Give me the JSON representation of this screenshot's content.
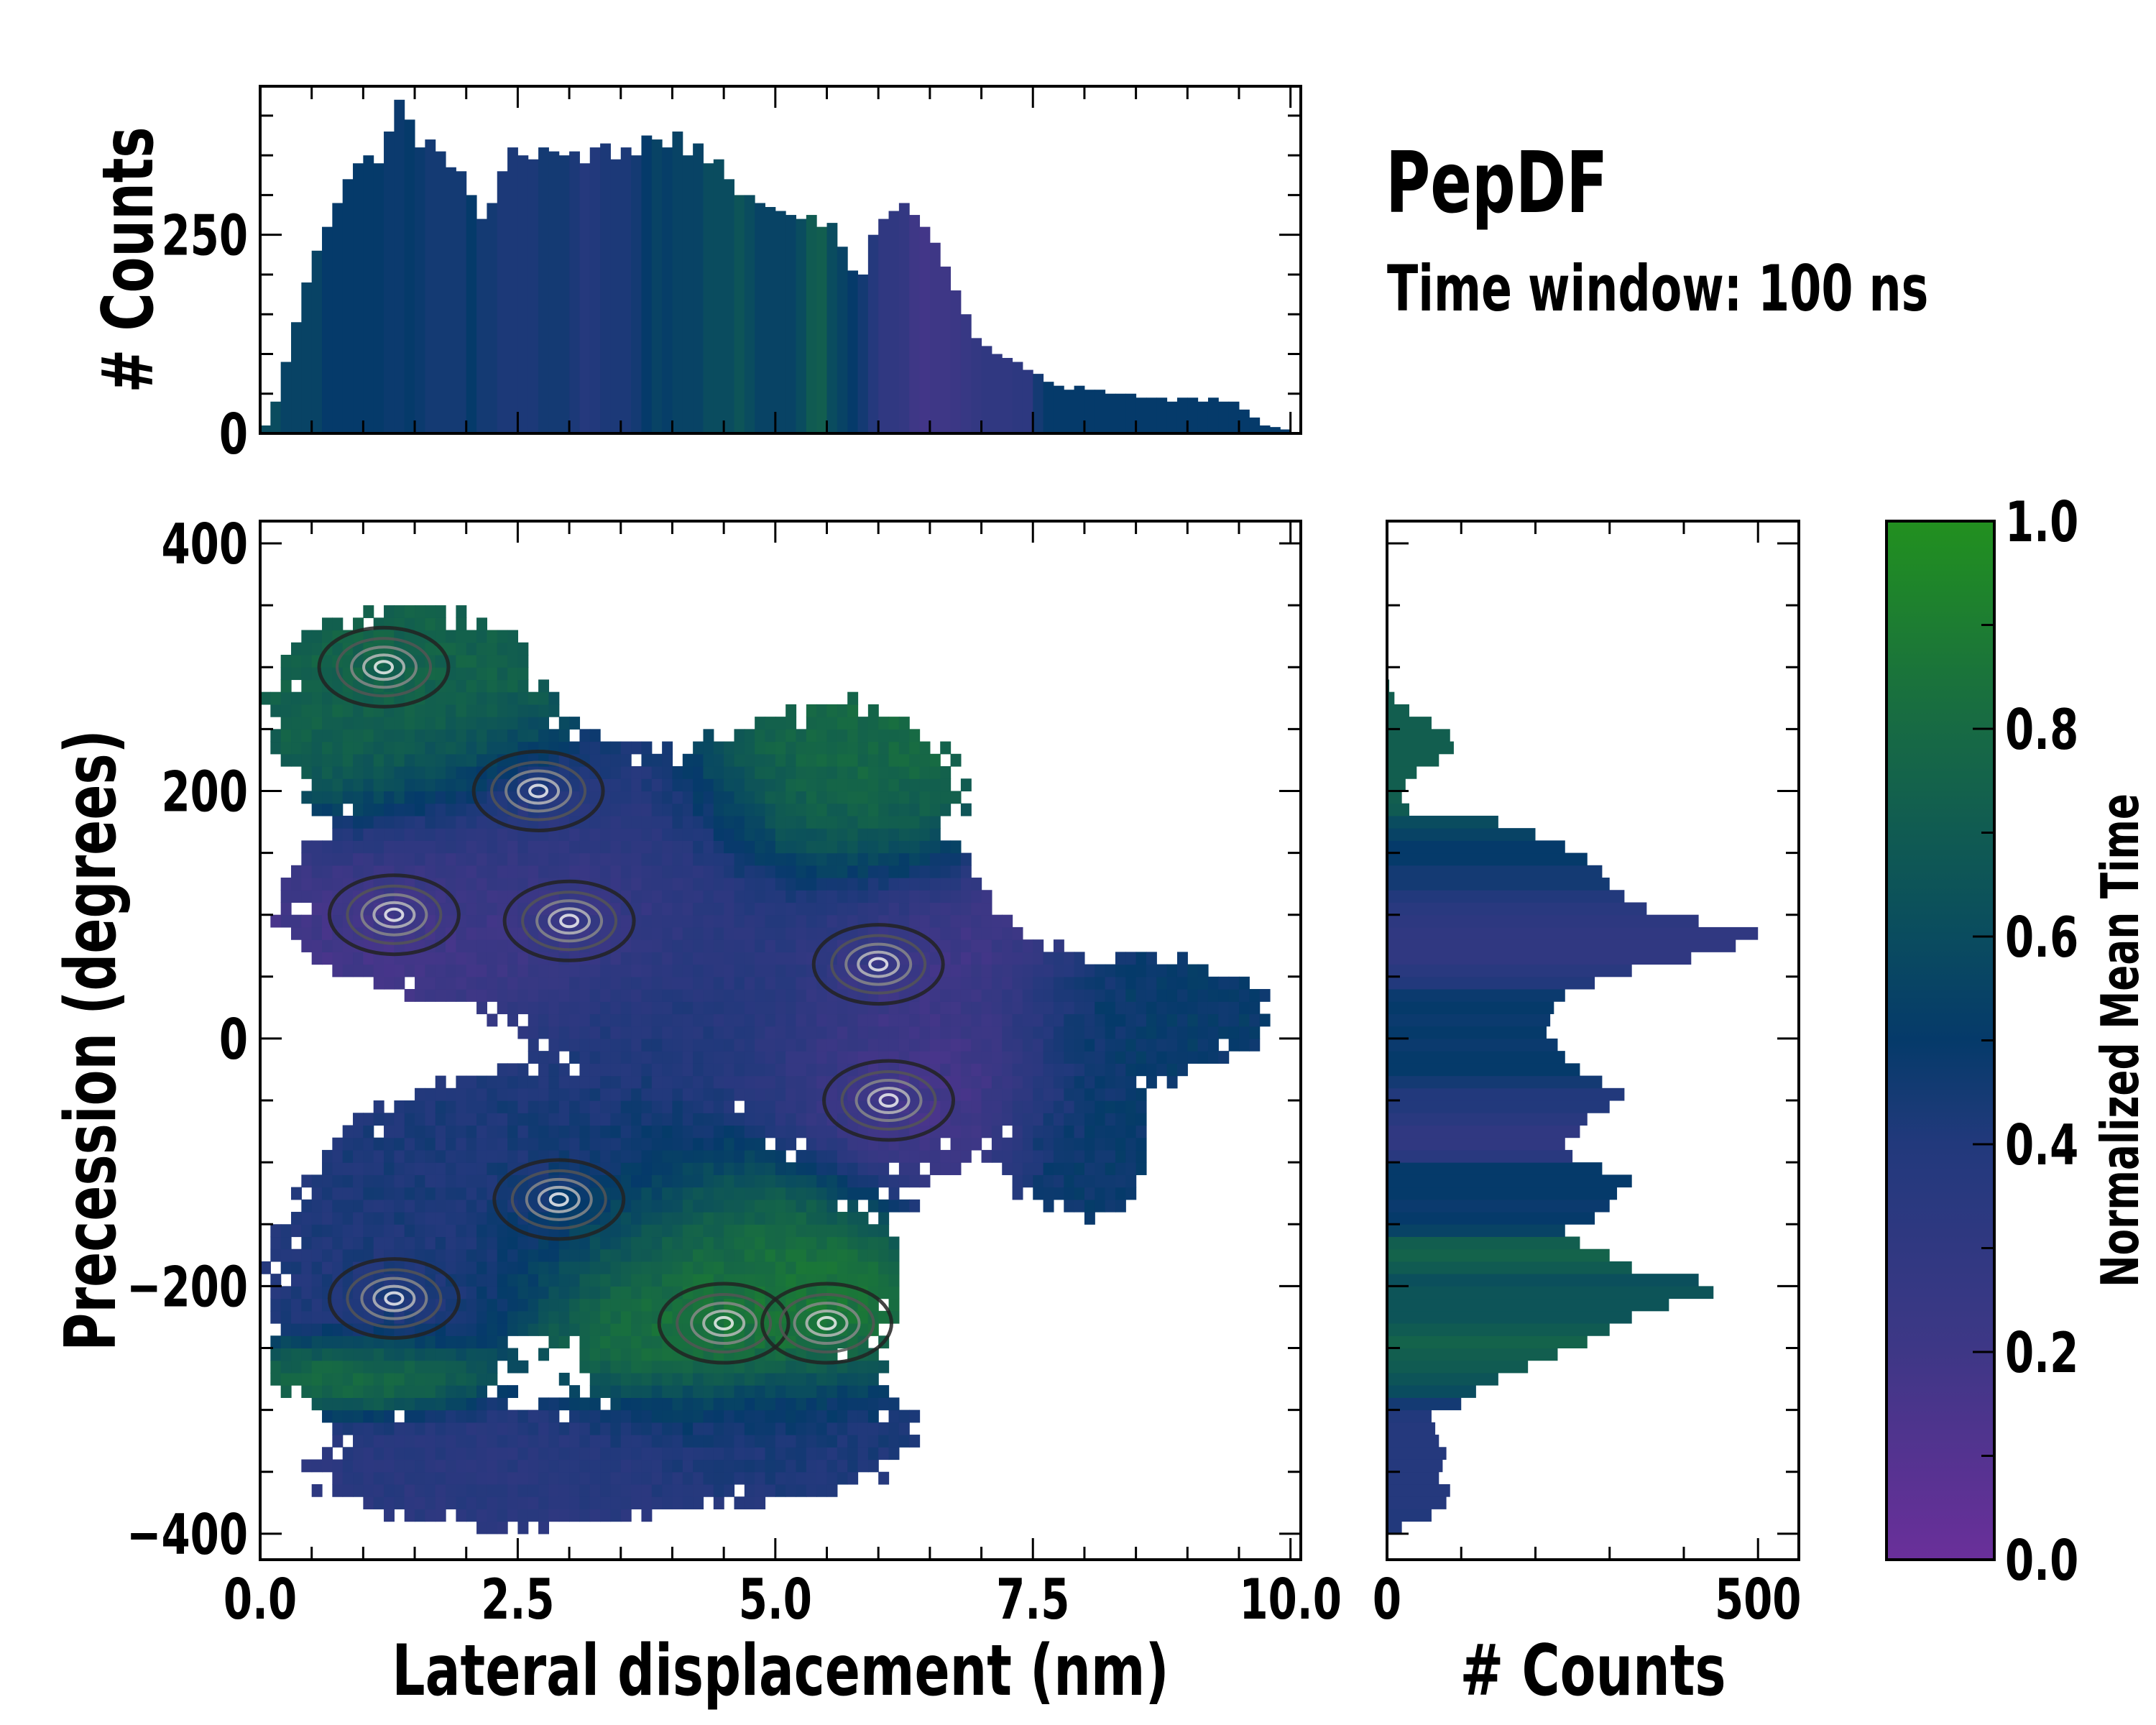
{
  "header": {
    "title": "PepDF",
    "subtitle": "Time window: 100 ns"
  },
  "colormap": {
    "stops": [
      [
        0.0,
        "#6a2f9a"
      ],
      [
        0.2,
        "#3e3786"
      ],
      [
        0.4,
        "#22397c"
      ],
      [
        0.5,
        "#053a6a"
      ],
      [
        0.6,
        "#0a4c5f"
      ],
      [
        0.8,
        "#176a44"
      ],
      [
        1.0,
        "#22901f"
      ]
    ]
  },
  "chart_data": [
    {
      "id": "top-histogram",
      "type": "bar",
      "ylabel": "# Counts",
      "xlim": [
        0,
        10.1
      ],
      "ylim": [
        0,
        437
      ],
      "yticks": [
        0,
        250
      ],
      "ytick_labels": [
        "0",
        "250"
      ],
      "bin_width": 0.1,
      "x_start": 0.0,
      "values": [
        10,
        40,
        90,
        140,
        190,
        230,
        260,
        290,
        320,
        340,
        350,
        340,
        380,
        420,
        395,
        360,
        370,
        355,
        335,
        330,
        300,
        270,
        290,
        330,
        360,
        350,
        345,
        360,
        355,
        350,
        355,
        340,
        360,
        365,
        345,
        360,
        350,
        375,
        370,
        360,
        380,
        350,
        365,
        340,
        345,
        320,
        300,
        300,
        290,
        285,
        280,
        275,
        270,
        275,
        260,
        265,
        235,
        205,
        200,
        250,
        270,
        280,
        290,
        275,
        260,
        240,
        210,
        180,
        150,
        120,
        110,
        100,
        95,
        90,
        80,
        75,
        65,
        60,
        55,
        60,
        55,
        55,
        50,
        50,
        50,
        45,
        45,
        45,
        40,
        45,
        45,
        40,
        45,
        40,
        40,
        30,
        20,
        10,
        8,
        5
      ],
      "mean_time": [
        0.6,
        0.6,
        0.55,
        0.55,
        0.55,
        0.55,
        0.5,
        0.5,
        0.5,
        0.5,
        0.5,
        0.5,
        0.48,
        0.48,
        0.5,
        0.48,
        0.45,
        0.45,
        0.45,
        0.45,
        0.5,
        0.45,
        0.45,
        0.42,
        0.42,
        0.42,
        0.42,
        0.45,
        0.45,
        0.45,
        0.42,
        0.38,
        0.4,
        0.42,
        0.42,
        0.42,
        0.45,
        0.5,
        0.55,
        0.52,
        0.55,
        0.55,
        0.55,
        0.6,
        0.6,
        0.6,
        0.65,
        0.6,
        0.55,
        0.55,
        0.55,
        0.55,
        0.6,
        0.7,
        0.72,
        0.6,
        0.55,
        0.5,
        0.45,
        0.38,
        0.3,
        0.3,
        0.28,
        0.2,
        0.18,
        0.2,
        0.2,
        0.22,
        0.25,
        0.28,
        0.3,
        0.3,
        0.3,
        0.32,
        0.32,
        0.45,
        0.5,
        0.5,
        0.5,
        0.5,
        0.5,
        0.5,
        0.5,
        0.5,
        0.5,
        0.5,
        0.5,
        0.5,
        0.5,
        0.5,
        0.5,
        0.5,
        0.5,
        0.5,
        0.5,
        0.5,
        0.5,
        0.5,
        0.5,
        0.5
      ]
    },
    {
      "id": "main-heatmap",
      "type": "heatmap",
      "xlabel": "Lateral displacement (nm)",
      "ylabel": "Precession (degrees)",
      "xlim": [
        0,
        10.1
      ],
      "ylim": [
        -421,
        418
      ],
      "xticks": [
        0,
        2.5,
        5,
        7.5,
        10
      ],
      "xtick_labels": [
        "0.0",
        "2.5",
        "5.0",
        "7.5",
        "10.0"
      ],
      "yticks": [
        -400,
        -200,
        0,
        200,
        400
      ],
      "ytick_labels": [
        "−400",
        "−200",
        "0",
        "200",
        "400"
      ],
      "cell_size": [
        0.1,
        10
      ],
      "clusters": [
        {
          "x": 1.4,
          "y": 270,
          "sx": 0.9,
          "sy": 55,
          "w": 1.0,
          "t": 0.75
        },
        {
          "x": 2.3,
          "y": 100,
          "sx": 1.3,
          "sy": 40,
          "w": 1.3,
          "t": 0.18
        },
        {
          "x": 3.0,
          "y": 170,
          "sx": 1.1,
          "sy": 45,
          "w": 1.0,
          "t": 0.35
        },
        {
          "x": 5.6,
          "y": 200,
          "sx": 0.8,
          "sy": 50,
          "w": 0.9,
          "t": 0.8
        },
        {
          "x": 4.5,
          "y": 40,
          "sx": 1.1,
          "sy": 55,
          "w": 1.0,
          "t": 0.4
        },
        {
          "x": 6.3,
          "y": 10,
          "sx": 0.8,
          "sy": 75,
          "w": 1.0,
          "t": 0.15
        },
        {
          "x": 8.6,
          "y": 20,
          "sx": 0.9,
          "sy": 35,
          "w": 0.8,
          "t": 0.5
        },
        {
          "x": 8.0,
          "y": -90,
          "sx": 0.5,
          "sy": 45,
          "w": 0.7,
          "t": 0.5
        },
        {
          "x": 2.6,
          "y": -120,
          "sx": 1.3,
          "sy": 55,
          "w": 1.1,
          "t": 0.42
        },
        {
          "x": 4.5,
          "y": -200,
          "sx": 1.0,
          "sy": 55,
          "w": 1.2,
          "t": 0.88
        },
        {
          "x": 1.2,
          "y": -210,
          "sx": 0.7,
          "sy": 45,
          "w": 1.0,
          "t": 0.4
        },
        {
          "x": 1.1,
          "y": -270,
          "sx": 0.6,
          "sy": 18,
          "w": 0.8,
          "t": 1.0
        },
        {
          "x": 2.3,
          "y": -350,
          "sx": 1.3,
          "sy": 35,
          "w": 0.8,
          "t": 0.35
        },
        {
          "x": 5.0,
          "y": -320,
          "sx": 1.0,
          "sy": 35,
          "w": 0.8,
          "t": 0.4
        }
      ],
      "hotspots": [
        [
          1.3,
          100
        ],
        [
          3.0,
          95
        ],
        [
          2.7,
          200
        ],
        [
          1.2,
          300
        ],
        [
          4.5,
          -230
        ],
        [
          1.3,
          -210
        ],
        [
          2.9,
          -130
        ],
        [
          6.1,
          -50
        ],
        [
          6.0,
          60
        ],
        [
          5.5,
          -230
        ]
      ]
    },
    {
      "id": "right-histogram",
      "type": "bar",
      "orientation": "horizontal",
      "xlabel": "# Counts",
      "xlim": [
        0,
        555
      ],
      "xticks": [
        0,
        500
      ],
      "xtick_labels": [
        "0",
        "500"
      ],
      "bin_width": 10,
      "y_start": -400,
      "values": [
        20,
        60,
        80,
        85,
        70,
        75,
        80,
        70,
        65,
        60,
        100,
        120,
        150,
        190,
        230,
        270,
        300,
        330,
        380,
        440,
        420,
        330,
        300,
        260,
        240,
        280,
        300,
        310,
        330,
        290,
        250,
        240,
        260,
        270,
        300,
        320,
        290,
        260,
        240,
        230,
        215,
        220,
        225,
        240,
        280,
        330,
        410,
        470,
        500,
        420,
        350,
        320,
        300,
        290,
        270,
        240,
        200,
        150,
        30,
        20,
        25,
        40,
        70,
        90,
        85,
        60,
        30,
        10,
        3,
        1
      ],
      "mean_time": [
        0.4,
        0.4,
        0.38,
        0.38,
        0.38,
        0.38,
        0.38,
        0.38,
        0.38,
        0.4,
        0.45,
        0.6,
        0.65,
        0.7,
        0.72,
        0.75,
        0.7,
        0.65,
        0.65,
        0.65,
        0.62,
        0.7,
        0.75,
        0.72,
        0.55,
        0.5,
        0.48,
        0.5,
        0.5,
        0.5,
        0.35,
        0.3,
        0.3,
        0.35,
        0.4,
        0.4,
        0.45,
        0.5,
        0.5,
        0.48,
        0.5,
        0.48,
        0.5,
        0.48,
        0.4,
        0.35,
        0.3,
        0.3,
        0.3,
        0.32,
        0.35,
        0.4,
        0.45,
        0.45,
        0.5,
        0.5,
        0.55,
        0.6,
        0.7,
        0.72,
        0.72,
        0.72,
        0.72,
        0.72,
        0.72,
        0.72,
        0.72,
        0.72,
        0.72,
        0.72
      ]
    },
    {
      "id": "colorbar",
      "type": "colorbar",
      "label": "Normalized Mean Time",
      "range": [
        0,
        1
      ],
      "ticks": [
        0,
        0.2,
        0.4,
        0.6,
        0.8,
        1.0
      ],
      "tick_labels": [
        "0.0",
        "0.2",
        "0.4",
        "0.6",
        "0.8",
        "1.0"
      ]
    }
  ]
}
